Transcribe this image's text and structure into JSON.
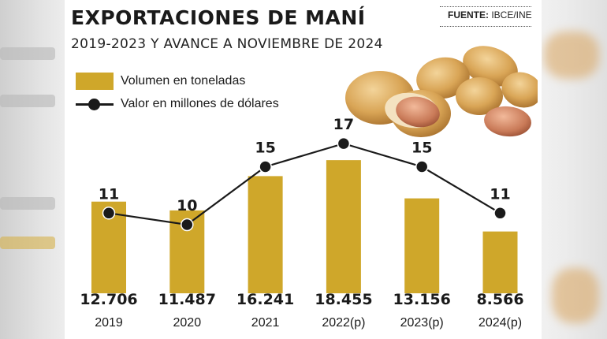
{
  "header": {
    "title": "EXPORTACIONES DE MANÍ",
    "subtitle": "2019-2023 Y AVANCE A NOVIEMBRE DE 2024",
    "source_label": "FUENTE:",
    "source_value": "IBCE/INE"
  },
  "legend": {
    "bars_label": "Volumen en toneladas",
    "line_label": "Valor en millones de dólares"
  },
  "colors": {
    "bar": "#cfa72a",
    "line": "#1a1a1a",
    "text": "#1a1a1a"
  },
  "chart_data": {
    "type": "bar",
    "categories": [
      "2019",
      "2020",
      "2021",
      "2022(p)",
      "2023(p)",
      "2024(p)"
    ],
    "series": [
      {
        "name": "Volumen en toneladas",
        "type": "bar",
        "values": [
          12706,
          11487,
          16241,
          18455,
          13156,
          8566
        ],
        "labels": [
          "12.706",
          "11.487",
          "16.241",
          "18.455",
          "13.156",
          "8.566"
        ]
      },
      {
        "name": "Valor en millones de dólares",
        "type": "line",
        "values": [
          11,
          10,
          15,
          17,
          15,
          11
        ],
        "labels": [
          "11",
          "10",
          "15",
          "17",
          "15",
          "11"
        ]
      }
    ],
    "title": "EXPORTACIONES DE MANÍ",
    "grid": false,
    "legend_position": "top-left"
  }
}
